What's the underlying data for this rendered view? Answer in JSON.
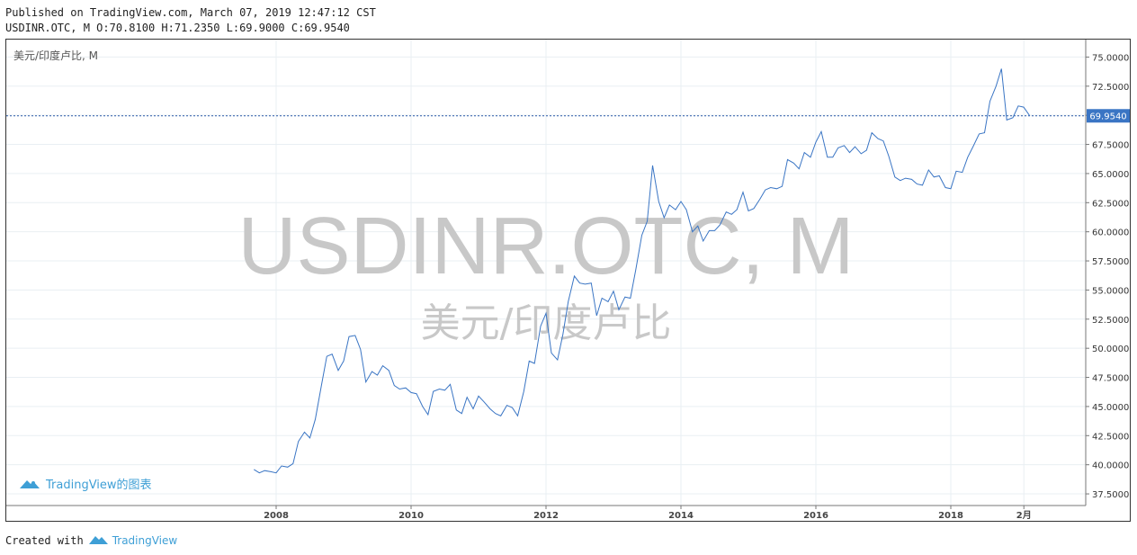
{
  "header": {
    "published_line": "Published on TradingView.com, March 07, 2019 12:47:12 CST",
    "ohlc_line": "USDINR.OTC, M O:70.8100 H:71.2350 L:69.9000 C:69.9540"
  },
  "chart_legend": "美元/印度卢比, M",
  "watermark": {
    "symbol": "USDINR.OTC, M",
    "description": "美元/印度卢比"
  },
  "brand_badge": {
    "text": "TradingView的图表",
    "icon": "tradingview-logo-icon"
  },
  "footer": {
    "prefix": "Created with",
    "brand": "TradingView"
  },
  "colors": {
    "line": "#3a75c4",
    "price_label_bg": "#3a75c4",
    "grid": "#e9eff3",
    "watermark": "#c8c8c8",
    "brand": "#3e9fd6"
  },
  "chart_data": {
    "type": "line",
    "title": "",
    "xlabel": "",
    "ylabel": "",
    "ylim": [
      36.5,
      76.5
    ],
    "xlim": [
      2004.0,
      2020.0
    ],
    "y_ticks": [
      "37.5000",
      "40.0000",
      "42.5000",
      "45.0000",
      "47.5000",
      "50.0000",
      "52.5000",
      "55.0000",
      "57.5000",
      "60.0000",
      "62.5000",
      "65.0000",
      "67.5000",
      "70.0000",
      "72.5000",
      "75.0000"
    ],
    "x_ticks": [
      {
        "label": "2008",
        "x": 2008.0
      },
      {
        "label": "2010",
        "x": 2010.0
      },
      {
        "label": "2012",
        "x": 2012.0
      },
      {
        "label": "2014",
        "x": 2014.0
      },
      {
        "label": "2016",
        "x": 2016.0
      },
      {
        "label": "2018",
        "x": 2018.0
      },
      {
        "label": "2月",
        "x": 2019.083
      }
    ],
    "last_price": 69.954,
    "last_price_label": "69.9540",
    "grid": true,
    "series": [
      {
        "x": [
          2007.67,
          2007.75,
          2007.83,
          2007.92,
          2008.0,
          2008.08,
          2008.17,
          2008.25,
          2008.33,
          2008.42,
          2008.5,
          2008.58,
          2008.67,
          2008.75,
          2008.83,
          2008.92,
          2009.0,
          2009.08,
          2009.17,
          2009.25,
          2009.33,
          2009.42,
          2009.5,
          2009.58,
          2009.67,
          2009.75,
          2009.83,
          2009.92,
          2010.0,
          2010.08,
          2010.17,
          2010.25,
          2010.33,
          2010.42,
          2010.5,
          2010.58,
          2010.67,
          2010.75,
          2010.83,
          2010.92,
          2011.0,
          2011.08,
          2011.17,
          2011.25,
          2011.33,
          2011.42,
          2011.5,
          2011.58,
          2011.67,
          2011.75,
          2011.83,
          2011.92,
          2012.0,
          2012.08,
          2012.17,
          2012.25,
          2012.33,
          2012.42,
          2012.5,
          2012.58,
          2012.67,
          2012.75,
          2012.83,
          2012.92,
          2013.0,
          2013.08,
          2013.17,
          2013.25,
          2013.33,
          2013.42,
          2013.5,
          2013.58,
          2013.67,
          2013.75,
          2013.83,
          2013.92,
          2014.0,
          2014.08,
          2014.17,
          2014.25,
          2014.33,
          2014.42,
          2014.5,
          2014.58,
          2014.67,
          2014.75,
          2014.83,
          2014.92,
          2015.0,
          2015.08,
          2015.17,
          2015.25,
          2015.33,
          2015.42,
          2015.5,
          2015.58,
          2015.67,
          2015.75,
          2015.83,
          2015.92,
          2016.0,
          2016.08,
          2016.17,
          2016.25,
          2016.33,
          2016.42,
          2016.5,
          2016.58,
          2016.67,
          2016.75,
          2016.83,
          2016.92,
          2017.0,
          2017.08,
          2017.17,
          2017.25,
          2017.33,
          2017.42,
          2017.5,
          2017.58,
          2017.67,
          2017.75,
          2017.83,
          2017.92,
          2018.0,
          2018.08,
          2018.17,
          2018.25,
          2018.33,
          2018.42,
          2018.5,
          2018.58,
          2018.67,
          2018.75,
          2018.83,
          2018.92,
          2019.0,
          2019.08,
          2019.17
        ],
        "y": [
          39.6,
          39.3,
          39.5,
          39.4,
          39.3,
          39.9,
          39.8,
          40.1,
          42.0,
          42.8,
          42.3,
          43.9,
          46.8,
          49.3,
          49.5,
          48.1,
          48.9,
          51.0,
          51.1,
          49.9,
          47.1,
          48.0,
          47.7,
          48.5,
          48.1,
          46.8,
          46.5,
          46.6,
          46.2,
          46.1,
          45.0,
          44.3,
          46.3,
          46.5,
          46.4,
          46.9,
          44.7,
          44.4,
          45.8,
          44.8,
          45.9,
          45.4,
          44.8,
          44.4,
          44.2,
          45.1,
          44.9,
          44.2,
          46.3,
          48.9,
          48.7,
          51.9,
          53.0,
          49.6,
          49.0,
          51.2,
          54.0,
          56.2,
          55.6,
          55.5,
          55.6,
          52.8,
          54.3,
          54.0,
          54.9,
          53.3,
          54.4,
          54.3,
          56.7,
          59.7,
          60.9,
          65.7,
          62.6,
          61.2,
          62.3,
          61.9,
          62.6,
          61.9,
          60.0,
          60.5,
          59.2,
          60.1,
          60.1,
          60.6,
          61.7,
          61.5,
          61.9,
          63.4,
          61.8,
          62.0,
          62.8,
          63.6,
          63.8,
          63.7,
          63.9,
          66.2,
          65.9,
          65.4,
          66.8,
          66.4,
          67.7,
          68.6,
          66.4,
          66.4,
          67.2,
          67.4,
          66.8,
          67.3,
          66.7,
          67.0,
          68.5,
          68.0,
          67.8,
          66.5,
          64.7,
          64.4,
          64.6,
          64.5,
          64.1,
          64.0,
          65.3,
          64.7,
          64.8,
          63.8,
          63.7,
          65.2,
          65.1,
          66.4,
          67.3,
          68.4,
          68.5,
          71.2,
          72.5,
          74.0,
          69.6,
          69.8,
          70.8,
          70.7,
          69.95
        ]
      }
    ]
  }
}
